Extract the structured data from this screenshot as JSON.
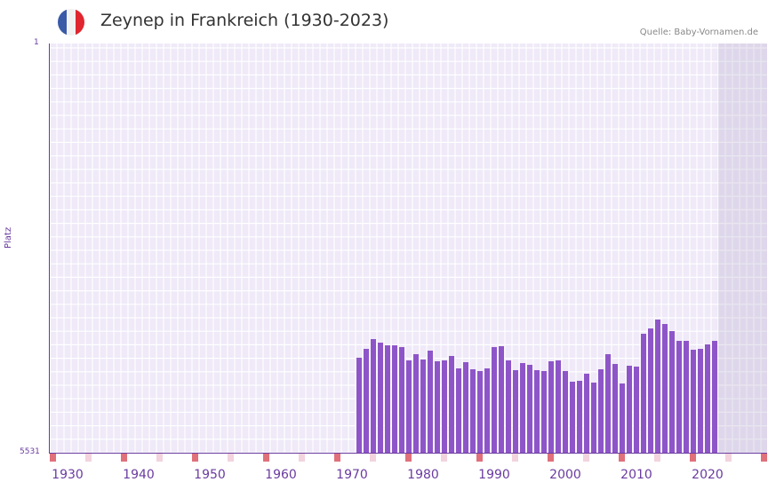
{
  "header": {
    "title": "Zeynep in Frankreich (1930-2023)",
    "source": "Quelle: Baby-Vornamen.de",
    "flag": {
      "name": "france-flag-icon",
      "colors": [
        "#3a5aa8",
        "#f2f2f2",
        "#e0262f"
      ]
    }
  },
  "colors": {
    "bar": "#8e55c8",
    "axis": "#6a3ba0",
    "marker_decade": "#e0707a",
    "marker_half": "#f3d3de",
    "plot_bg": "#efe9f8"
  },
  "chart_data": {
    "type": "bar",
    "title": "Zeynep in Frankreich (1930-2023)",
    "xlabel": "",
    "ylabel": "Platz",
    "y_axis_inverted": true,
    "ylim": [
      5531,
      1
    ],
    "yticks": [
      "1",
      "5531"
    ],
    "xticks": [
      "1930",
      "1940",
      "1950",
      "1960",
      "1970",
      "1980",
      "1990",
      "2000",
      "2010",
      "2020"
    ],
    "x_range": [
      1928,
      2028
    ],
    "shaded_future_from": 2022,
    "grid": true,
    "categories": [
      1971,
      1972,
      1973,
      1974,
      1975,
      1976,
      1977,
      1978,
      1979,
      1980,
      1981,
      1982,
      1983,
      1984,
      1985,
      1986,
      1987,
      1988,
      1989,
      1990,
      1991,
      1992,
      1993,
      1994,
      1995,
      1996,
      1997,
      1998,
      1999,
      2000,
      2001,
      2002,
      2003,
      2004,
      2005,
      2006,
      2007,
      2008,
      2009,
      2010,
      2011,
      2012,
      2013,
      2014,
      2015,
      2016,
      2017,
      2018,
      2019,
      2020,
      2021
    ],
    "values": [
      4248,
      4128,
      3996,
      4044,
      4080,
      4080,
      4104,
      4284,
      4200,
      4272,
      4152,
      4296,
      4284,
      4224,
      4392,
      4308,
      4404,
      4428,
      4392,
      4104,
      4092,
      4284,
      4416,
      4320,
      4344,
      4416,
      4428,
      4296,
      4284,
      4428,
      4572,
      4560,
      4464,
      4584,
      4404,
      4200,
      4332,
      4596,
      4356,
      4368,
      3924,
      3852,
      3732,
      3792,
      3888,
      4020,
      4020,
      4140,
      4128,
      4068,
      4020
    ],
    "series": [
      {
        "name": "Zeynep (Platz)",
        "values": [
          4248,
          4128,
          3996,
          4044,
          4080,
          4080,
          4104,
          4284,
          4200,
          4272,
          4152,
          4296,
          4284,
          4224,
          4392,
          4308,
          4404,
          4428,
          4392,
          4104,
          4092,
          4284,
          4416,
          4320,
          4344,
          4416,
          4428,
          4296,
          4284,
          4428,
          4572,
          4560,
          4464,
          4584,
          4404,
          4200,
          4332,
          4596,
          4356,
          4368,
          3924,
          3852,
          3732,
          3792,
          3888,
          4020,
          4020,
          4140,
          4128,
          4068,
          4020
        ]
      }
    ]
  }
}
